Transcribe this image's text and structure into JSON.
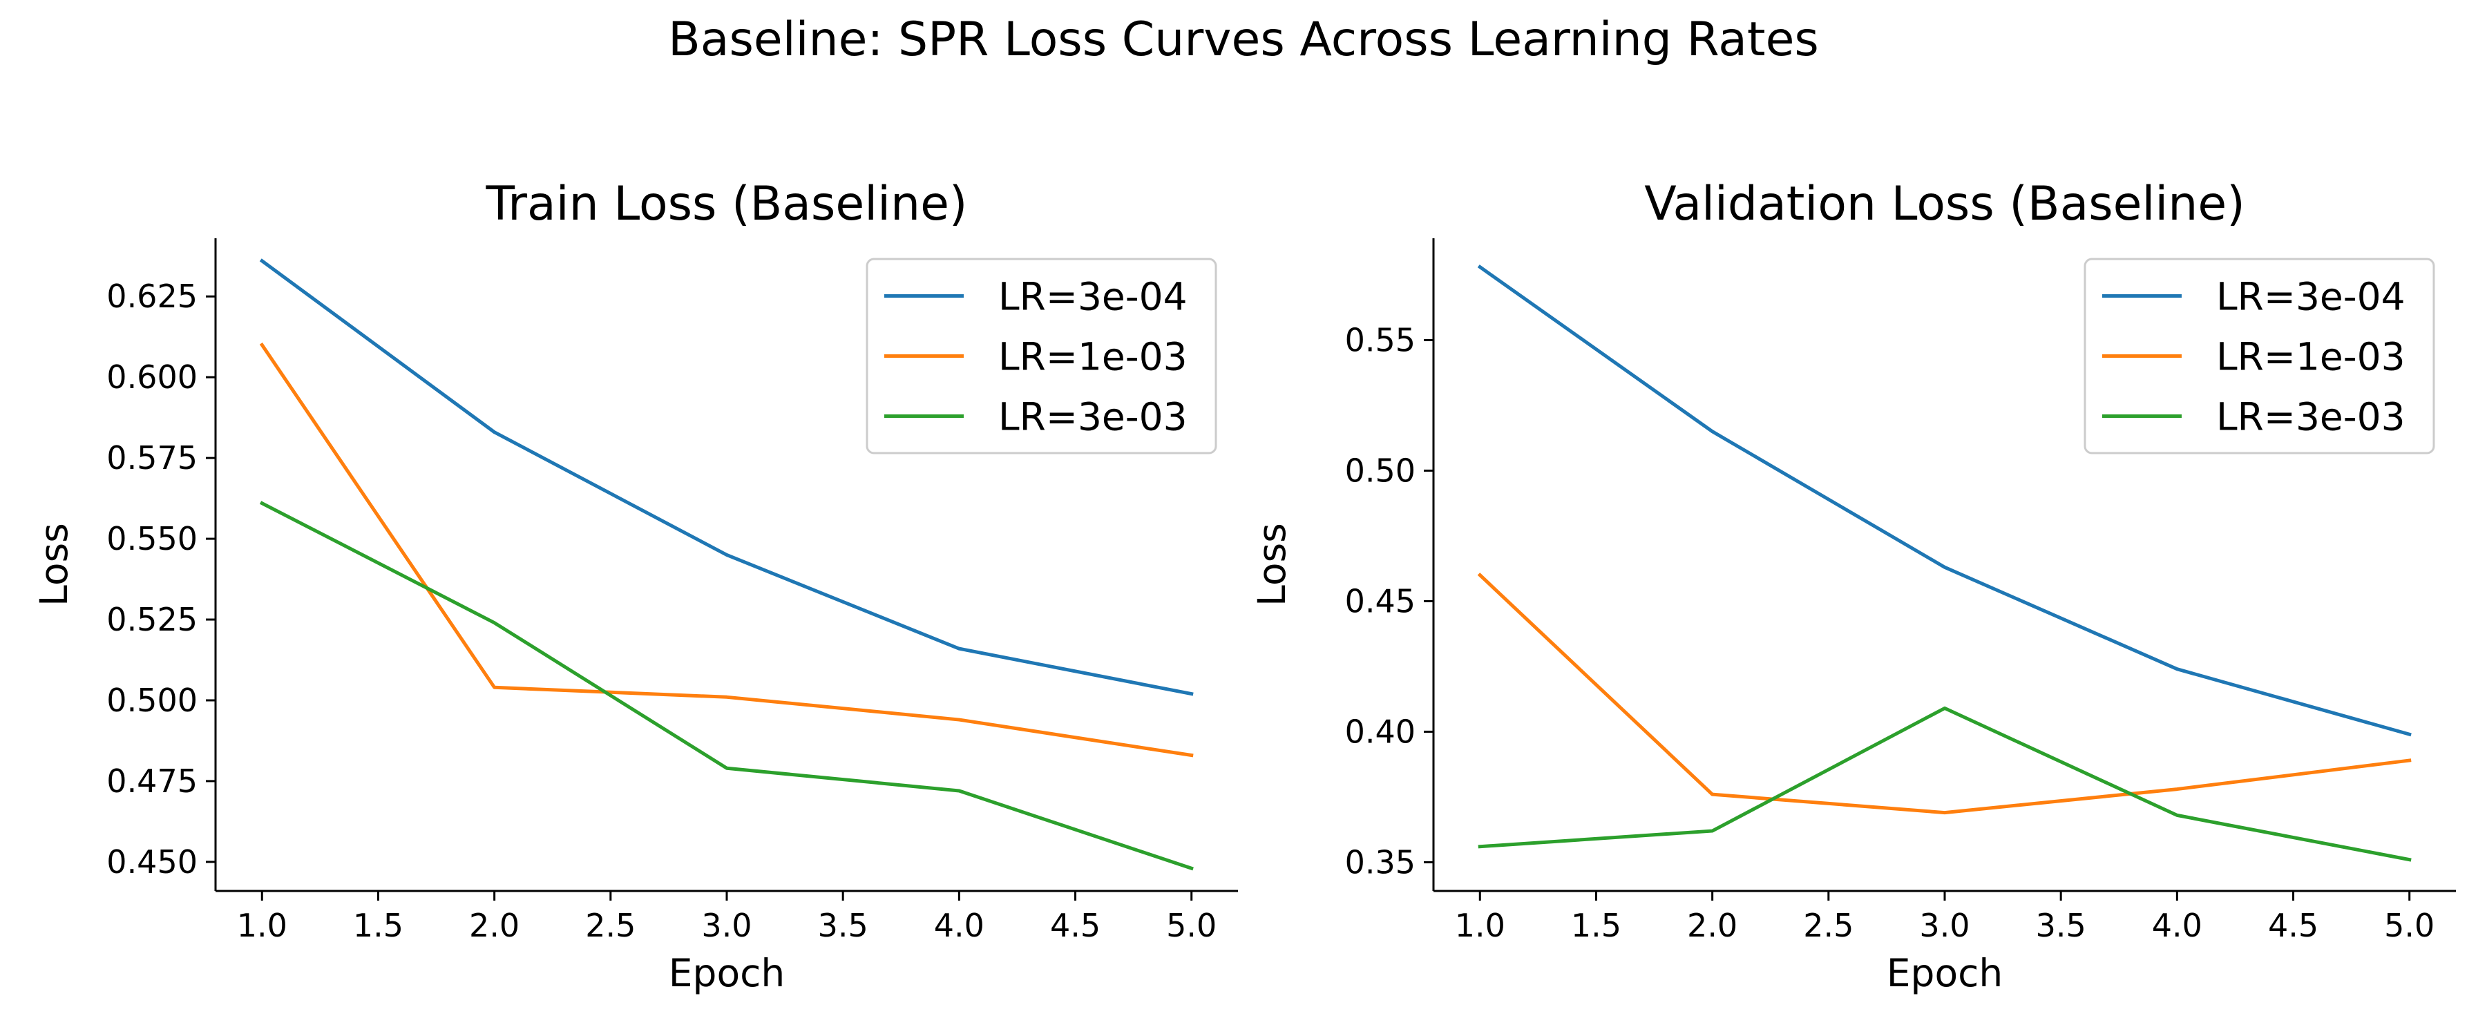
{
  "figure_title": "Baseline: SPR Loss Curves Across Learning Rates",
  "chart_data": [
    {
      "type": "line",
      "title": "Train Loss (Baseline)",
      "xlabel": "Epoch",
      "ylabel": "Loss",
      "x": [
        1,
        2,
        3,
        4,
        5
      ],
      "xticks": [
        "1.0",
        "1.5",
        "2.0",
        "2.5",
        "3.0",
        "3.5",
        "4.0",
        "4.5",
        "5.0"
      ],
      "yticks": [
        "0.450",
        "0.475",
        "0.500",
        "0.525",
        "0.550",
        "0.575",
        "0.600",
        "0.625"
      ],
      "xlim": [
        0.8,
        5.2
      ],
      "ylim": [
        0.441,
        0.643
      ],
      "grid": false,
      "legend_position": "upper right",
      "series": [
        {
          "name": "LR=3e-04",
          "color": "#1f77b4",
          "values": [
            0.636,
            0.583,
            0.545,
            0.516,
            0.502
          ]
        },
        {
          "name": "LR=1e-03",
          "color": "#ff7f0e",
          "values": [
            0.61,
            0.504,
            0.501,
            0.494,
            0.483
          ]
        },
        {
          "name": "LR=3e-03",
          "color": "#2ca02c",
          "values": [
            0.561,
            0.524,
            0.479,
            0.472,
            0.448
          ]
        }
      ]
    },
    {
      "type": "line",
      "title": "Validation Loss (Baseline)",
      "xlabel": "Epoch",
      "ylabel": "Loss",
      "x": [
        1,
        2,
        3,
        4,
        5
      ],
      "xticks": [
        "1.0",
        "1.5",
        "2.0",
        "2.5",
        "3.0",
        "3.5",
        "4.0",
        "4.5",
        "5.0"
      ],
      "yticks": [
        "0.35",
        "0.40",
        "0.45",
        "0.50",
        "0.55"
      ],
      "xlim": [
        0.8,
        5.2
      ],
      "ylim": [
        0.339,
        0.589
      ],
      "grid": false,
      "legend_position": "upper right",
      "series": [
        {
          "name": "LR=3e-04",
          "color": "#1f77b4",
          "values": [
            0.578,
            0.515,
            0.463,
            0.424,
            0.399
          ]
        },
        {
          "name": "LR=1e-03",
          "color": "#ff7f0e",
          "values": [
            0.46,
            0.376,
            0.369,
            0.378,
            0.389
          ]
        },
        {
          "name": "LR=3e-03",
          "color": "#2ca02c",
          "values": [
            0.356,
            0.362,
            0.409,
            0.368,
            0.351
          ]
        }
      ]
    }
  ]
}
